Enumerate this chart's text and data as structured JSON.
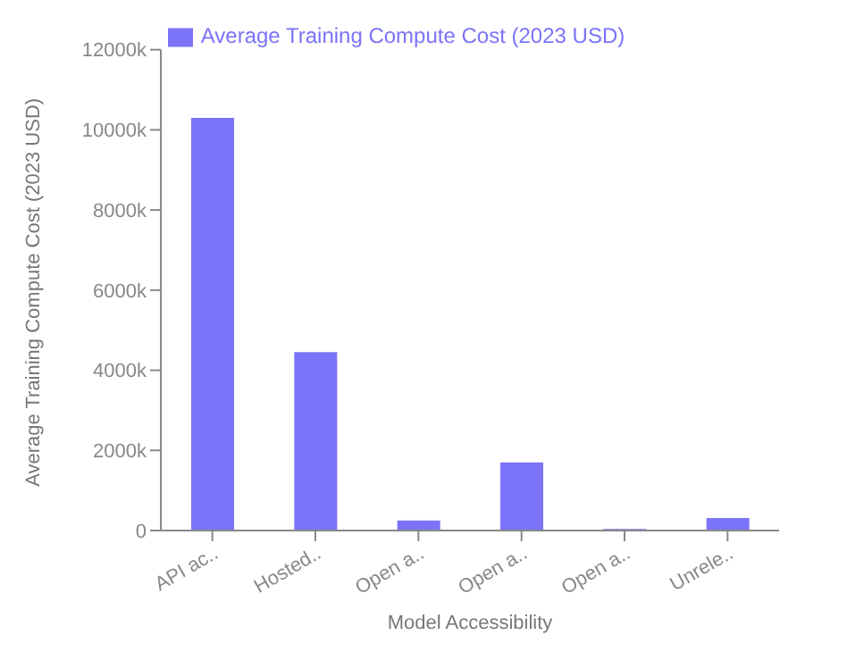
{
  "chart_data": {
    "type": "bar",
    "xlabel": "Model Accessibility",
    "ylabel": "Average Training Compute Cost (2023 USD)",
    "categories": [
      "API ac..",
      "Hosted..",
      "Open a..",
      "Open a..",
      "Open a..",
      "Unrele.."
    ],
    "series": [
      {
        "name": "Average Training Compute Cost (2023 USD)",
        "color": "#7b73f8",
        "values": [
          10300000,
          4450000,
          250000,
          1700000,
          40000,
          310000
        ]
      }
    ],
    "ylim": [
      0,
      12000000
    ],
    "yticks": [
      0,
      {
        "value": 2000000,
        "label": "2000k"
      },
      {
        "value": 4000000,
        "label": "4000k"
      },
      {
        "value": 6000000,
        "label": "6000k"
      },
      {
        "value": 8000000,
        "label": "8000k"
      },
      {
        "value": 10000000,
        "label": "10000k"
      },
      {
        "value": 12000000,
        "label": "12000k"
      }
    ],
    "grid": false,
    "legend": "top"
  }
}
